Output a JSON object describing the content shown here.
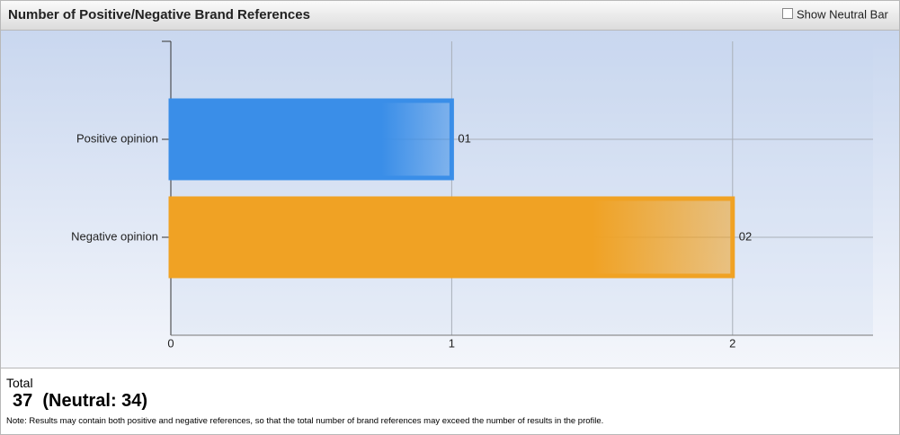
{
  "chart_data": {
    "type": "hbar",
    "title": "Number of Positive/Negative Brand References",
    "categories": [
      "Positive opinion",
      "Negative opinion"
    ],
    "values": [
      1,
      2
    ],
    "value_labels": [
      "01",
      "02"
    ],
    "colors": [
      "#3a8ee8",
      "#f0a224"
    ],
    "xlim": [
      0,
      2.5
    ],
    "xticks": [
      0,
      1,
      2
    ],
    "grid": true
  },
  "controls": {
    "neutral_checkbox": "Show Neutral Bar"
  },
  "summary": {
    "label": "Total",
    "total": 37,
    "neutral": "(Neutral: 34)",
    "note": "Note: Results may contain both positive and negative references, so that the total number of brand references may exceed the number of results in the profile."
  }
}
